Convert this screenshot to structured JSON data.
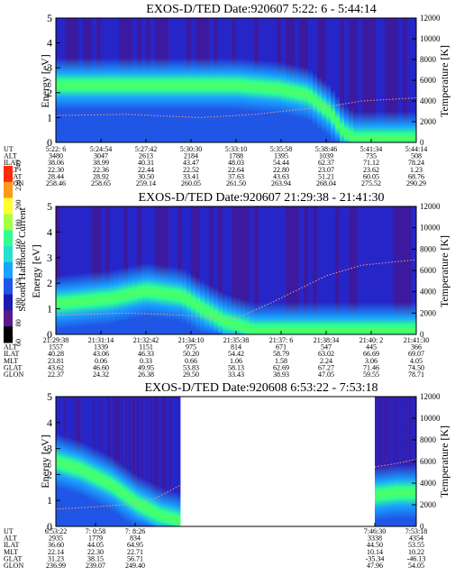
{
  "chart_data": {
    "type": "heatmap",
    "colorbar": {
      "label": "Second Harmonic Current",
      "ticks": [
        60,
        80,
        100,
        120,
        140,
        160,
        180,
        200,
        220,
        240
      ],
      "colors": [
        "#000000",
        "#5a1a8c",
        "#1b1bb0",
        "#1f56e6",
        "#1aa3ff",
        "#26e0d0",
        "#30ff90",
        "#a6ff40",
        "#ffff30",
        "#ff9a1a",
        "#ff2a0a"
      ]
    },
    "panels": [
      {
        "title": "EXOS-D/TED   Date:920607   5:22: 6 - 5:44:14",
        "ylabel": "Energy [eV]",
        "ylabel_right": "Temperature [K]",
        "ylim": [
          0,
          5
        ],
        "yticks": [
          "0",
          "1",
          "2",
          "3",
          "4",
          "5"
        ],
        "yrlim": [
          0,
          12000
        ],
        "yrticks": [
          "0",
          "2000",
          "4000",
          "6000",
          "8000",
          "10000",
          "12000"
        ],
        "time_ticks": [
          "5:22: 6",
          "5:24:54",
          "5:27:42",
          "5:30:30",
          "5:33:10",
          "5:35:58",
          "5:38:46",
          "5:41:34",
          "5:44:14"
        ],
        "aux_rows": [
          {
            "label": "UT",
            "values": [
              "5:22: 6",
              "5:24:54",
              "5:27:42",
              "5:30:30",
              "5:33:10",
              "5:35:58",
              "5:38:46",
              "5:41:34",
              "5:44:14"
            ]
          },
          {
            "label": "ALT",
            "values": [
              "3480",
              "3047",
              "2613",
              "2184",
              "1788",
              "1395",
              "1039",
              "735",
              "508"
            ]
          },
          {
            "label": "ILAT",
            "values": [
              "38.06",
              "38.99",
              "40.31",
              "43.47",
              "48.03",
              "54.44",
              "62.37",
              "71.12",
              "78.24"
            ]
          },
          {
            "label": "MLT",
            "values": [
              "22.30",
              "22.36",
              "22.44",
              "22.52",
              "22.64",
              "22.80",
              "23.07",
              "23.62",
              "1.23"
            ]
          },
          {
            "label": "GLAT",
            "values": [
              "28.44",
              "28.92",
              "30.50",
              "33.41",
              "37.63",
              "43.63",
              "51.21",
              "60.05",
              "68.76"
            ]
          },
          {
            "label": "GLON",
            "values": [
              "258.46",
              "258.65",
              "259.14",
              "260.05",
              "261.50",
              "263.94",
              "268.04",
              "275.52",
              "290.29"
            ]
          }
        ],
        "band_centers": [
          {
            "t": 0,
            "e": 2.3
          },
          {
            "t": 0.3,
            "e": 2.3
          },
          {
            "t": 0.5,
            "e": 2.3
          },
          {
            "t": 0.62,
            "e": 2.15
          },
          {
            "t": 0.7,
            "e": 1.9
          },
          {
            "t": 0.76,
            "e": 1.2
          },
          {
            "t": 0.8,
            "e": 0.4
          },
          {
            "t": 0.83,
            "e": 0.15
          },
          {
            "t": 1,
            "e": 0.15
          }
        ],
        "temperature": [
          {
            "t": 0,
            "k": 2600
          },
          {
            "t": 0.2,
            "k": 2700
          },
          {
            "t": 0.4,
            "k": 2400
          },
          {
            "t": 0.55,
            "k": 2700
          },
          {
            "t": 0.68,
            "k": 3200
          },
          {
            "t": 0.78,
            "k": 3600
          },
          {
            "t": 0.85,
            "k": 4000
          },
          {
            "t": 1,
            "k": 4300
          }
        ]
      },
      {
        "title": "EXOS-D/TED   Date:920607   21:29:38 - 21:41:30",
        "ylabel": "Energy [eV]",
        "ylabel_right": "Temperature [K]",
        "ylim": [
          0,
          5
        ],
        "yticks": [
          "0",
          "1",
          "2",
          "3",
          "4",
          "5"
        ],
        "yrlim": [
          0,
          12000
        ],
        "yrticks": [
          "0",
          "2000",
          "4000",
          "6000",
          "8000",
          "10000",
          "12000"
        ],
        "time_ticks": [
          "21:29:38",
          "21:31:14",
          "21:32:42",
          "21:34:10",
          "21:35:38",
          "21:37: 6",
          "21:38:34",
          "21:40: 2",
          "21:41:30"
        ],
        "aux_rows": [
          {
            "label": "UT",
            "values": [
              "21:29:38",
              "21:31:14",
              "21:32:42",
              "21:34:10",
              "21:35:38",
              "21:37: 6",
              "21:38:34",
              "21:40: 2",
              "21:41:30"
            ]
          },
          {
            "label": "ALT",
            "values": [
              "1557",
              "1339",
              "1151",
              "975",
              "814",
              "671",
              "547",
              "445",
              "366"
            ]
          },
          {
            "label": "ILAT",
            "values": [
              "40.28",
              "43.06",
              "46.33",
              "50.20",
              "54.42",
              "58.79",
              "63.02",
              "66.69",
              "69.07"
            ]
          },
          {
            "label": "MLT",
            "values": [
              "23.81",
              "0.06",
              "0.33",
              "0.66",
              "1.06",
              "1.58",
              "2.24",
              "3.06",
              "4.05"
            ]
          },
          {
            "label": "GLAT",
            "values": [
              "43.62",
              "46.60",
              "49.95",
              "53.83",
              "58.13",
              "62.69",
              "67.27",
              "71.46",
              "74.50"
            ]
          },
          {
            "label": "GLON",
            "values": [
              "22.37",
              "24.32",
              "26.38",
              "29.50",
              "33.43",
              "38.93",
              "47.05",
              "59.55",
              "78.71"
            ]
          }
        ],
        "band_centers": [
          {
            "t": 0,
            "e": 1.2
          },
          {
            "t": 0.15,
            "e": 1.4
          },
          {
            "t": 0.25,
            "e": 1.7
          },
          {
            "t": 0.35,
            "e": 1.5
          },
          {
            "t": 0.42,
            "e": 0.9
          },
          {
            "t": 0.47,
            "e": 0.5
          },
          {
            "t": 0.55,
            "e": 0.15
          },
          {
            "t": 1,
            "e": 0.15
          }
        ],
        "temperature": [
          {
            "t": 0,
            "k": 1800
          },
          {
            "t": 0.2,
            "k": 2000
          },
          {
            "t": 0.35,
            "k": 1800
          },
          {
            "t": 0.5,
            "k": 1500
          },
          {
            "t": 0.6,
            "k": 3000
          },
          {
            "t": 0.75,
            "k": 5500
          },
          {
            "t": 0.85,
            "k": 6500
          },
          {
            "t": 1,
            "k": 7000
          }
        ]
      },
      {
        "title": "EXOS-D/TED   Date:920608   6:53:22 - 7:53:18",
        "ylabel": "Energy [eV]",
        "ylabel_right": "Temperature [K]",
        "ylim": [
          0,
          5
        ],
        "yticks": [
          "0",
          "1",
          "2",
          "3",
          "4",
          "5"
        ],
        "yrlim": [
          0,
          12000
        ],
        "yrticks": [
          "0",
          "2000",
          "4000",
          "6000",
          "8000",
          "10000",
          "12000"
        ],
        "time_ticks": [
          "6:53:22",
          "7: 0:58",
          "7: 8:26",
          "7:46:30",
          "7:53:18"
        ],
        "aux_rows": [
          {
            "label": "UT",
            "values": [
              "6:53:22",
              "7: 0:58",
              "7: 8:26",
              "7:46:30",
              "7:53:18"
            ]
          },
          {
            "label": "ALT",
            "values": [
              "2935",
              "1779",
              "834",
              "3338",
              "4354"
            ]
          },
          {
            "label": "ILAT",
            "values": [
              "36.60",
              "44.05",
              "64.95",
              "44.50",
              "53.55"
            ]
          },
          {
            "label": "MLT",
            "values": [
              "22.14",
              "22.30",
              "22.71",
              "10.14",
              "10.22"
            ]
          },
          {
            "label": "GLAT",
            "values": [
              "31.23",
              "38.15",
              "56.71",
              "-35.34",
              "-46.13"
            ]
          },
          {
            "label": "GLON",
            "values": [
              "236.99",
              "239.07",
              "249.40",
              "47.96",
              "54.05"
            ]
          }
        ],
        "data_gap": [
          "7: 8:26",
          "7:46:30"
        ],
        "band_centers": [
          {
            "t": 0,
            "e": 2.5
          },
          {
            "t": 0.2,
            "e": 2.2
          },
          {
            "t": 0.45,
            "e": 1.6
          },
          {
            "t": 0.65,
            "e": 0.9
          },
          {
            "t": 0.85,
            "e": 0.4
          },
          {
            "t": 1,
            "e": 0.2
          }
        ],
        "band_centers_after_gap": [
          {
            "t": 0,
            "e": 1.2
          },
          {
            "t": 0.5,
            "e": 1.3
          },
          {
            "t": 1,
            "e": 1.3
          }
        ],
        "temperature": [
          {
            "t": 0,
            "k": 1600
          },
          {
            "t": 0.3,
            "k": 1800
          },
          {
            "t": 0.55,
            "k": 2000
          },
          {
            "t": 0.8,
            "k": 2600
          },
          {
            "t": 1,
            "k": 3800
          }
        ],
        "temperature_after_gap": [
          {
            "t": 0,
            "k": 5500
          },
          {
            "t": 0.5,
            "k": 5800
          },
          {
            "t": 1,
            "k": 6200
          }
        ]
      }
    ]
  }
}
